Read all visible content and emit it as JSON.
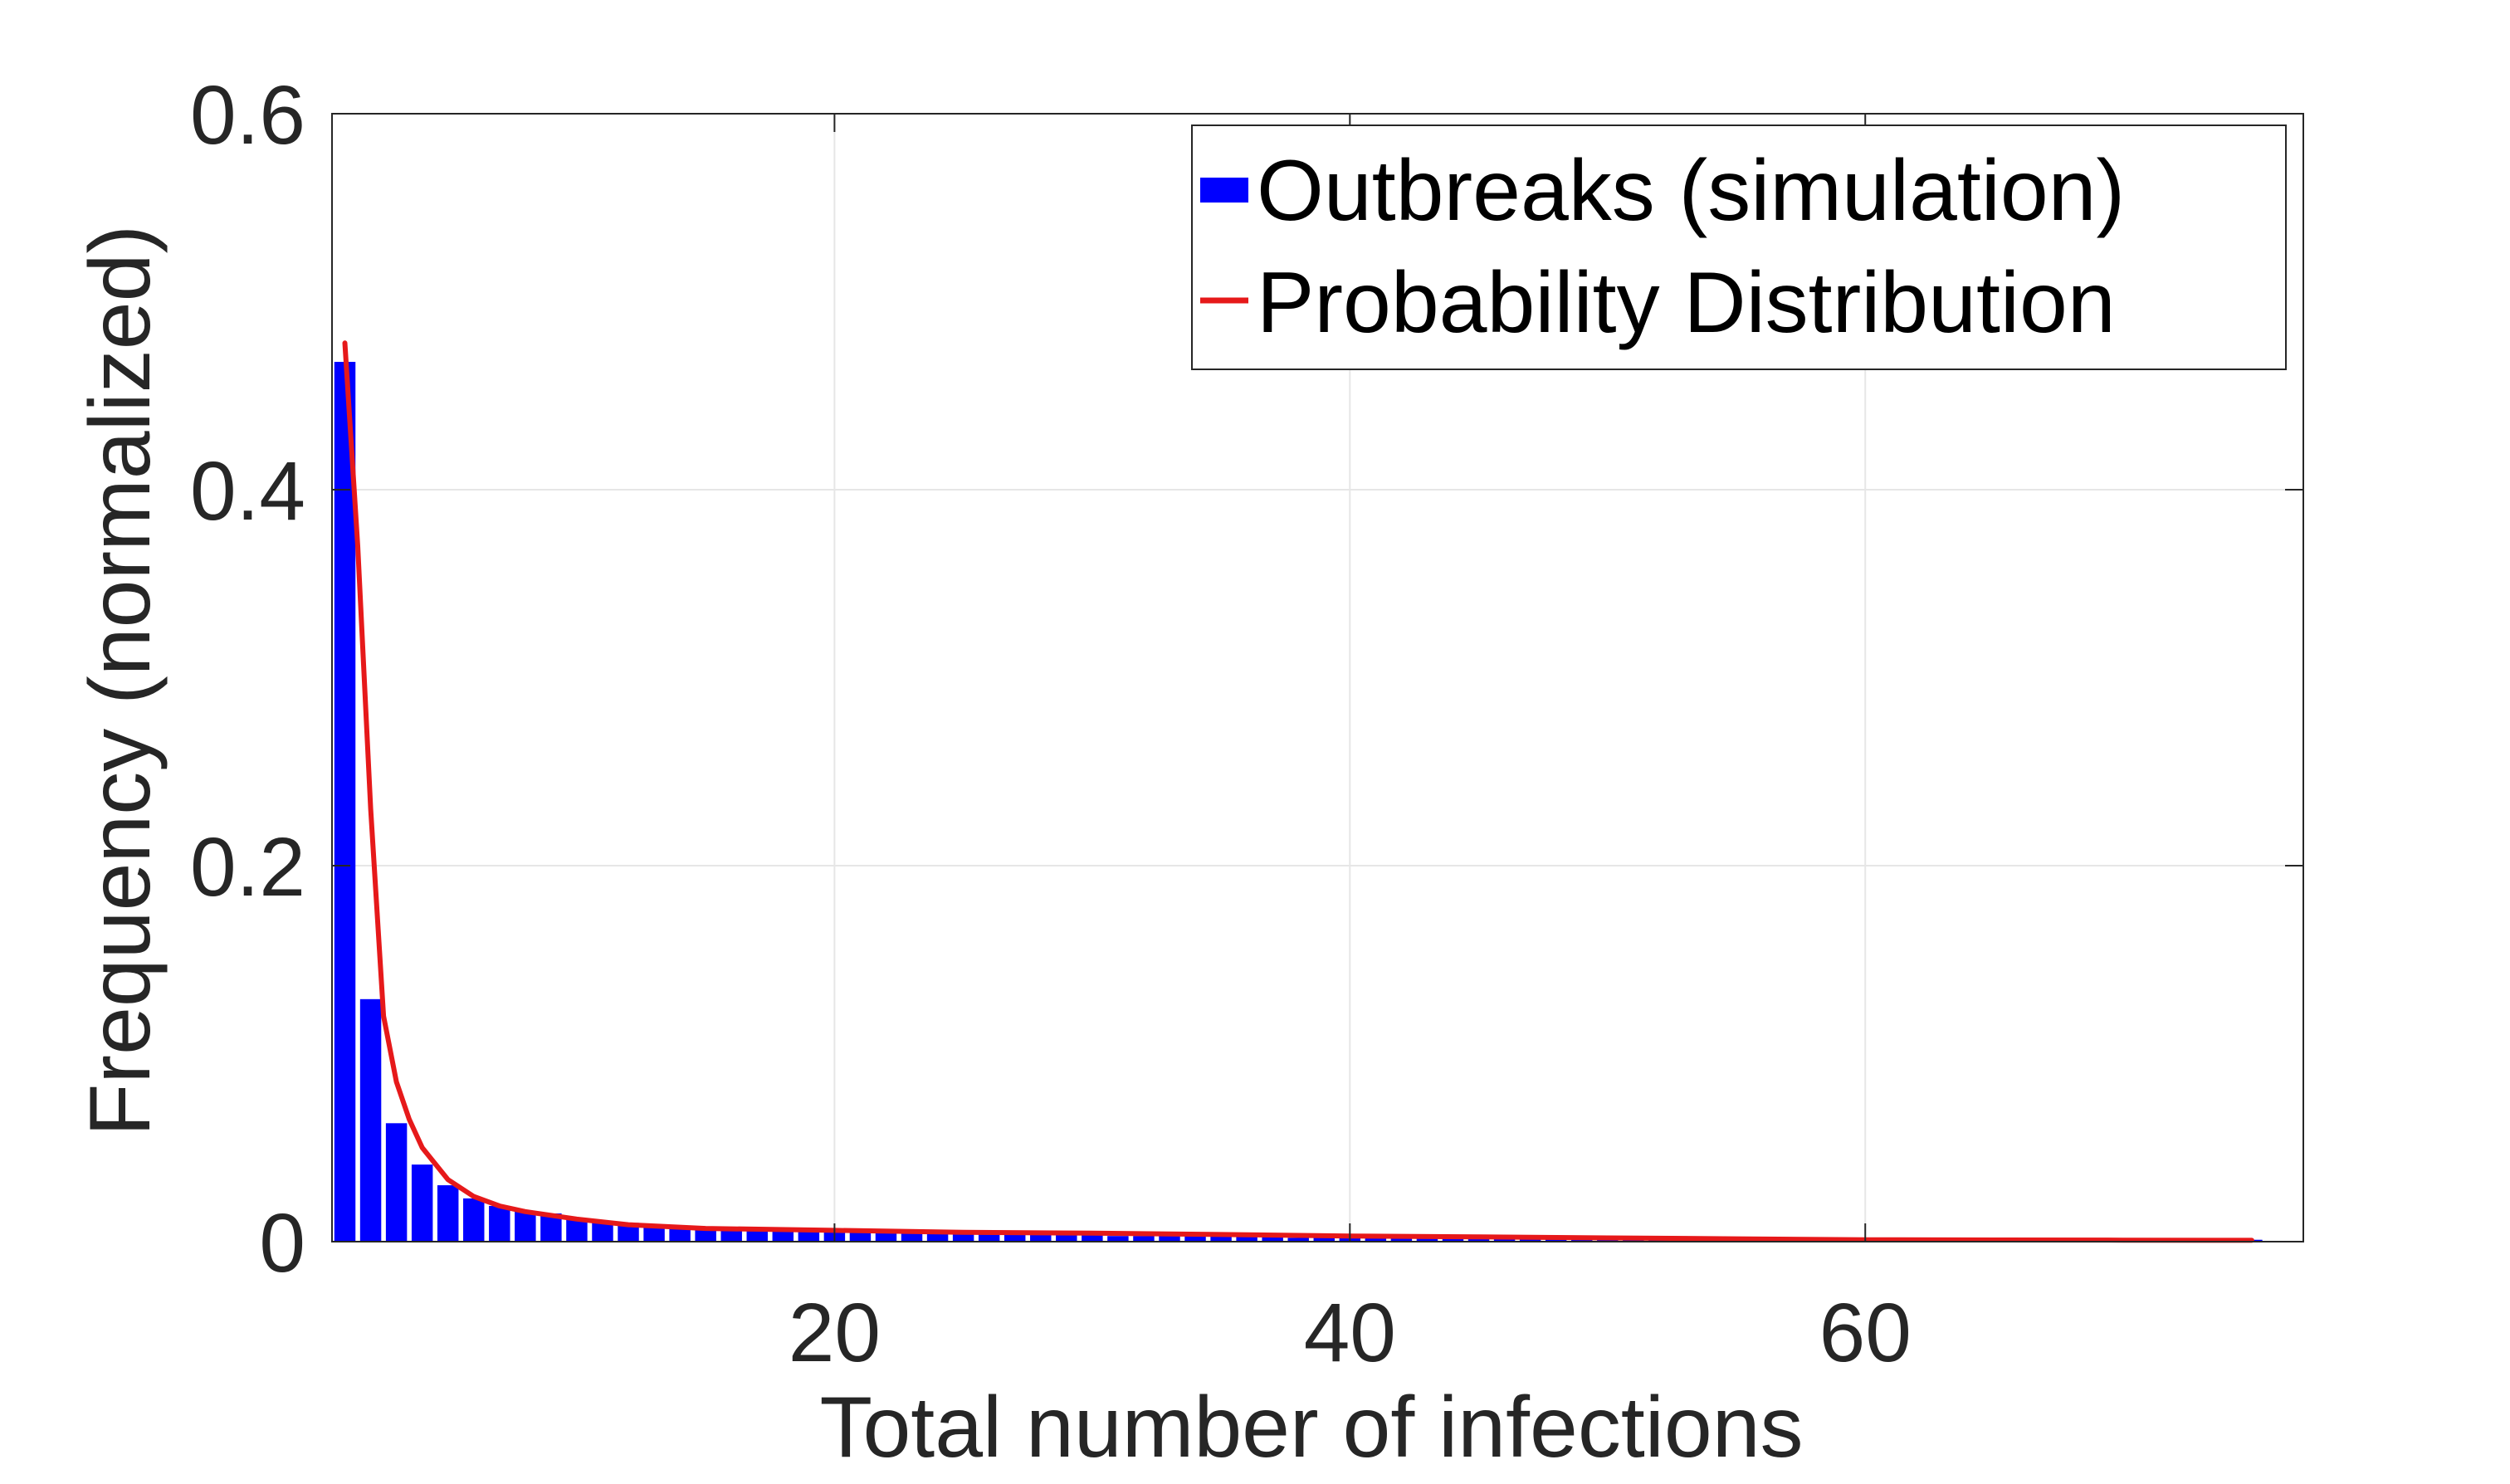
{
  "colors": {
    "background": "#ffffff",
    "axes": "#262626",
    "grid": "#e6e6e6",
    "bar": "#0000ff",
    "line": "#e6191a",
    "legend_text": "#000000"
  },
  "chart_data": {
    "type": "bar",
    "title": "",
    "xlabel": "Total number of infections",
    "ylabel": "Frequency (normalized)",
    "xlim": [
      0.5,
      77
    ],
    "ylim": [
      0,
      0.6
    ],
    "xticks": [
      20,
      40,
      60
    ],
    "xtick_labels": [
      "20",
      "40",
      "60"
    ],
    "yticks": [
      0,
      0.2,
      0.4,
      0.6
    ],
    "ytick_labels": [
      "0",
      "0.2",
      "0.4",
      "0.6"
    ],
    "grid": true,
    "legend_position": "top-right",
    "series": [
      {
        "name": "Outbreaks (simulation)",
        "type": "bar",
        "x": [
          1,
          2,
          3,
          4,
          5,
          6,
          7,
          8,
          9,
          10,
          11,
          12,
          13,
          14,
          15,
          16,
          17,
          18,
          19,
          20,
          21,
          22,
          23,
          24,
          25,
          26,
          27,
          28,
          29,
          30,
          31,
          32,
          33,
          34,
          35,
          36,
          37,
          38,
          39,
          40,
          41,
          42,
          43,
          44,
          45,
          46,
          47,
          48,
          49,
          50,
          51,
          52,
          53,
          54,
          55,
          56,
          57,
          58,
          59,
          60,
          61,
          62,
          63,
          64,
          65,
          66,
          67,
          68,
          69,
          70,
          71,
          72,
          73,
          74,
          75
        ],
        "values": [
          0.468,
          0.129,
          0.063,
          0.041,
          0.03,
          0.023,
          0.019,
          0.016,
          0.015,
          0.012,
          0.011,
          0.01,
          0.009,
          0.008,
          0.008,
          0.007,
          0.007,
          0.006,
          0.006,
          0.006,
          0.005,
          0.005,
          0.005,
          0.005,
          0.004,
          0.004,
          0.004,
          0.004,
          0.004,
          0.004,
          0.003,
          0.003,
          0.003,
          0.003,
          0.003,
          0.003,
          0.003,
          0.002,
          0.002,
          0.002,
          0.002,
          0.002,
          0.002,
          0.002,
          0.002,
          0.003,
          0.002,
          0.002,
          0.002,
          0.003,
          0.003,
          0.002,
          0.002,
          0.002,
          0.002,
          0.002,
          0.001,
          0.001,
          0.001,
          0.001,
          0.001,
          0.001,
          0.001,
          0.001,
          0.001,
          0.001,
          0.001,
          0.001,
          0.001,
          0.001,
          0.001,
          0.001,
          0.001,
          0.001,
          0.001
        ]
      },
      {
        "name": "Probability Distribution",
        "type": "line",
        "x": [
          1,
          1.5,
          2,
          2.5,
          3,
          3.5,
          4,
          5,
          6,
          7,
          8,
          10,
          12,
          15,
          20,
          25,
          30,
          35,
          40,
          45,
          50,
          55,
          60,
          65,
          70,
          75
        ],
        "values": [
          0.478,
          0.37,
          0.23,
          0.12,
          0.085,
          0.065,
          0.05,
          0.033,
          0.024,
          0.019,
          0.016,
          0.012,
          0.009,
          0.007,
          0.006,
          0.005,
          0.0045,
          0.0038,
          0.003,
          0.0025,
          0.002,
          0.0015,
          0.001,
          0.0009,
          0.0008,
          0.0007
        ]
      }
    ]
  }
}
